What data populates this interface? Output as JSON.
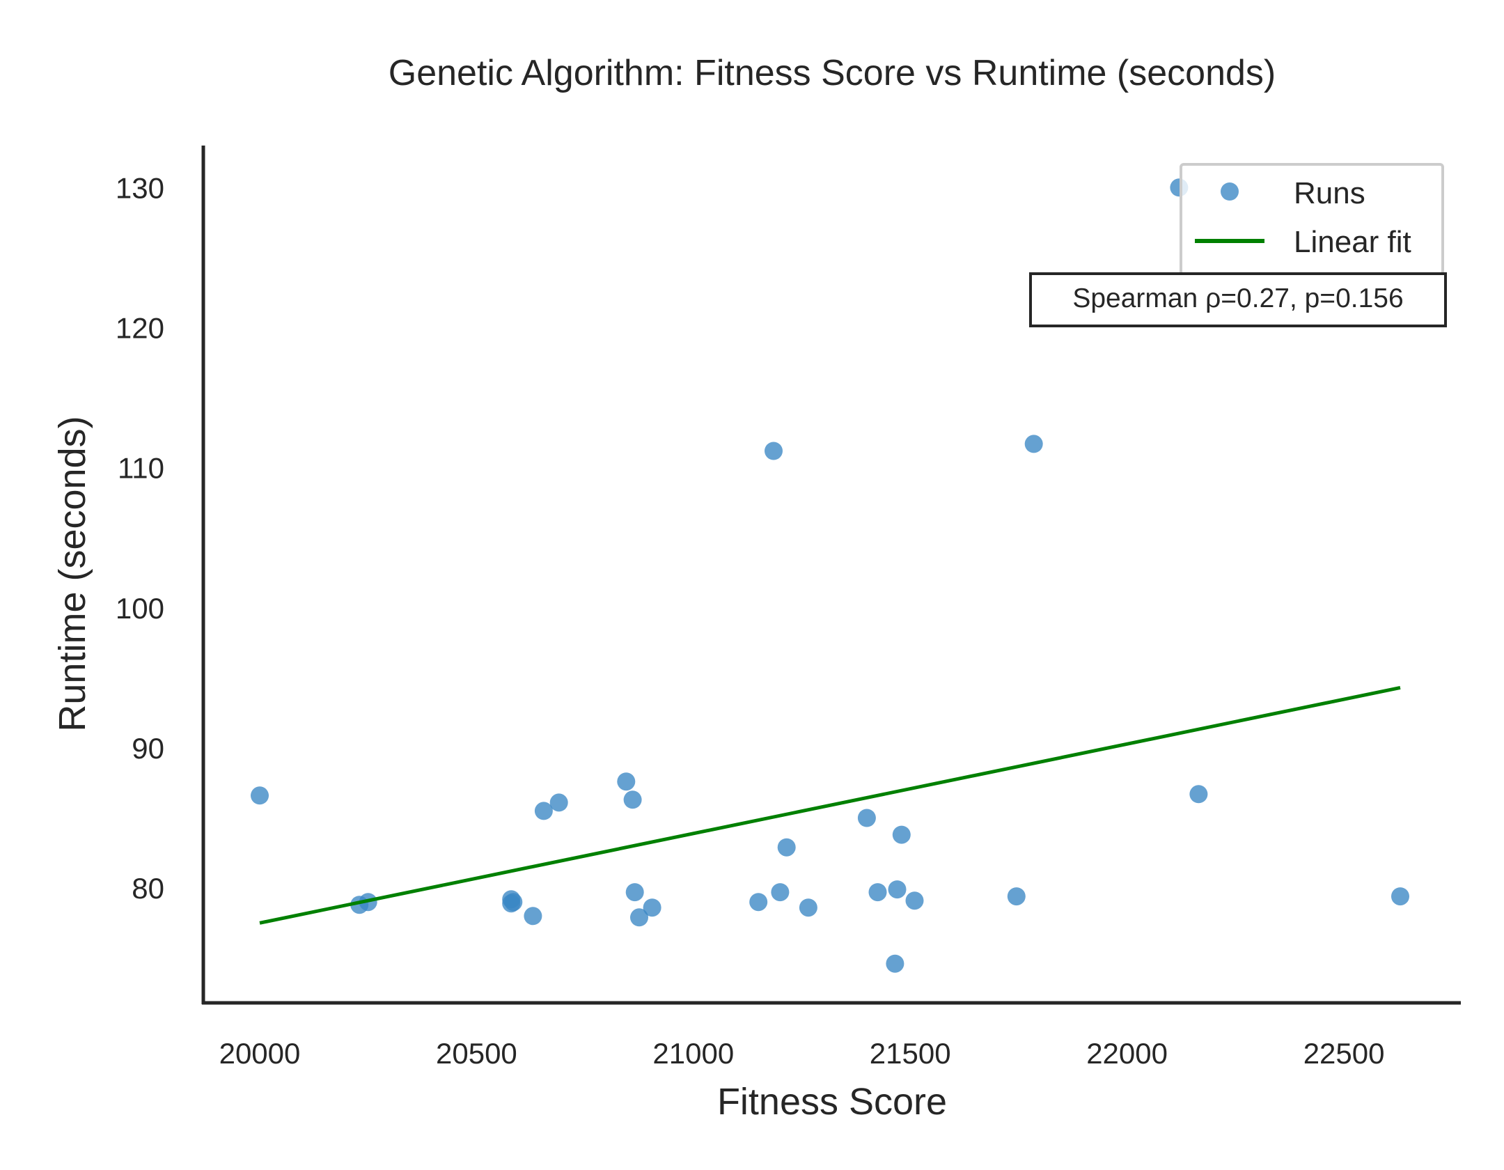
{
  "chart_data": {
    "type": "scatter",
    "title": "Genetic Algorithm: Fitness Score vs Runtime (seconds)",
    "xlabel": "Fitness Score",
    "ylabel": "Runtime (seconds)",
    "xlim": [
      19870,
      22760
    ],
    "ylim": [
      71.8,
      133.0
    ],
    "xticks": [
      20000,
      20500,
      21000,
      21500,
      22000,
      22500
    ],
    "yticks": [
      80,
      90,
      100,
      110,
      120,
      130
    ],
    "grid": false,
    "legend_position": "top-right",
    "series": [
      {
        "name": "Runs",
        "kind": "scatter",
        "color": "#3a86c4",
        "points": [
          {
            "x": 20000,
            "y": 86.6
          },
          {
            "x": 20230,
            "y": 78.8
          },
          {
            "x": 20250,
            "y": 79.0
          },
          {
            "x": 20580,
            "y": 79.2
          },
          {
            "x": 20580,
            "y": 78.9
          },
          {
            "x": 20585,
            "y": 79.0
          },
          {
            "x": 20630,
            "y": 78.0
          },
          {
            "x": 20655,
            "y": 85.5
          },
          {
            "x": 20690,
            "y": 86.1
          },
          {
            "x": 20845,
            "y": 87.6
          },
          {
            "x": 20860,
            "y": 86.3
          },
          {
            "x": 20865,
            "y": 79.7
          },
          {
            "x": 20875,
            "y": 77.9
          },
          {
            "x": 20905,
            "y": 78.6
          },
          {
            "x": 21150,
            "y": 79.0
          },
          {
            "x": 21185,
            "y": 111.2
          },
          {
            "x": 21200,
            "y": 79.7
          },
          {
            "x": 21215,
            "y": 82.9
          },
          {
            "x": 21265,
            "y": 78.6
          },
          {
            "x": 21400,
            "y": 85.0
          },
          {
            "x": 21425,
            "y": 79.7
          },
          {
            "x": 21465,
            "y": 74.6
          },
          {
            "x": 21470,
            "y": 79.9
          },
          {
            "x": 21480,
            "y": 83.8
          },
          {
            "x": 21510,
            "y": 79.1
          },
          {
            "x": 21745,
            "y": 79.4
          },
          {
            "x": 21785,
            "y": 111.7
          },
          {
            "x": 22120,
            "y": 130.0
          },
          {
            "x": 22165,
            "y": 86.7
          },
          {
            "x": 22630,
            "y": 79.4
          }
        ]
      },
      {
        "name": "Linear fit",
        "kind": "line",
        "color": "#008000",
        "points": [
          {
            "x": 20000,
            "y": 77.5
          },
          {
            "x": 22630,
            "y": 94.3
          }
        ]
      }
    ],
    "annotation": "Spearman ρ=0.27, p=0.156"
  }
}
